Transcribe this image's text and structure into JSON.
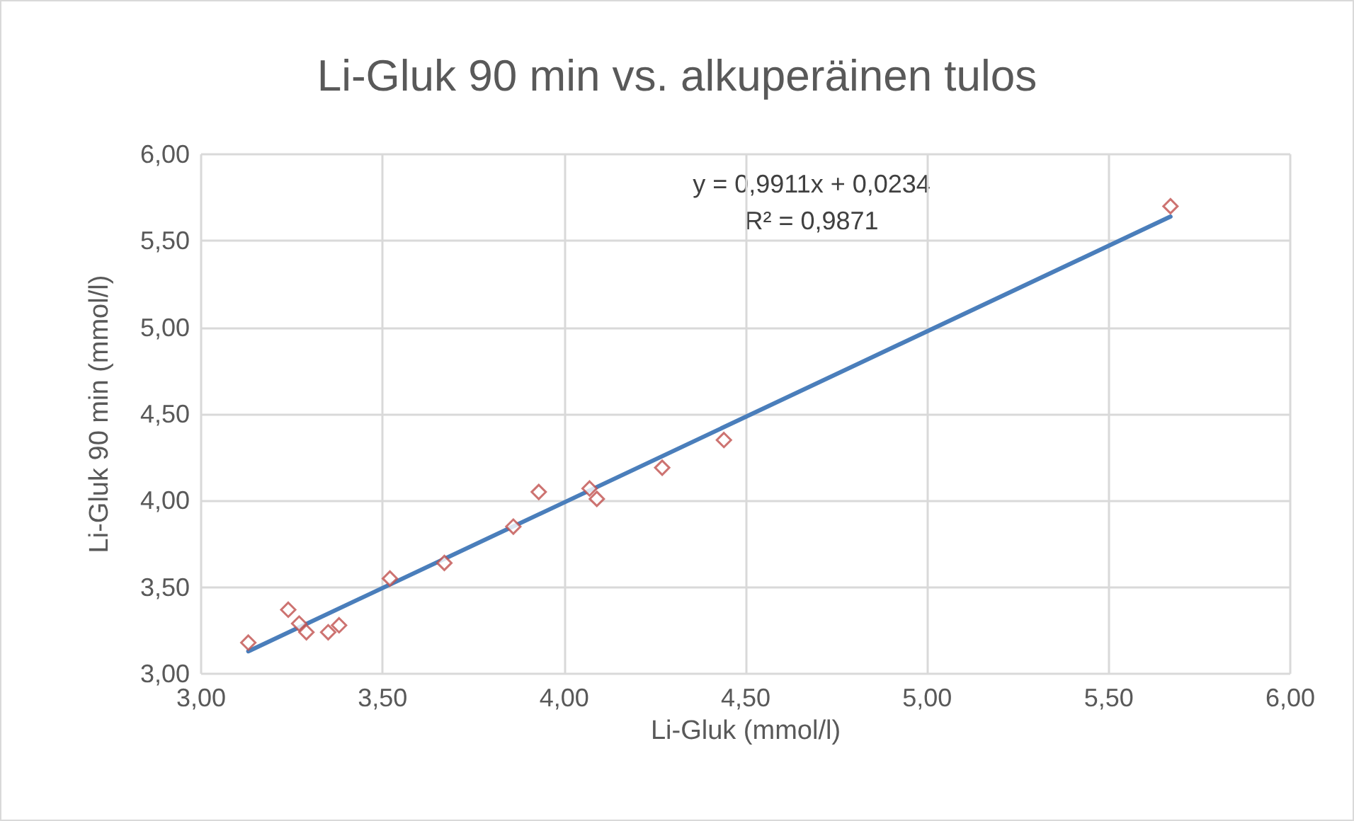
{
  "chart_data": {
    "type": "scatter",
    "title": "Li-Gluk 90 min vs. alkuperäinen tulos",
    "xlabel": "Li-Gluk (mmol/l)",
    "ylabel": "Li-Gluk 90 min (mmol/l)",
    "annotations": [
      "y = 0,9911x + 0,0234",
      "R² = 0,9871"
    ],
    "series": [
      {
        "color": "#c0504d",
        "marker": "diamond",
        "x": [
          3.13,
          3.24,
          3.27,
          3.29,
          3.35,
          3.38,
          3.52,
          3.67,
          3.86,
          3.93,
          4.07,
          4.09,
          4.27,
          4.44,
          5.67
        ],
        "values": [
          3.18,
          3.37,
          3.29,
          3.24,
          3.24,
          3.28,
          3.55,
          3.64,
          3.85,
          4.05,
          4.07,
          4.01,
          4.19,
          4.35,
          5.7
        ]
      },
      {
        "type": "line",
        "color": "#4a7ebb",
        "marker": "none",
        "line_style": "solid",
        "x": [
          3.13,
          5.67
        ],
        "values": [
          3.13,
          5.64
        ]
      }
    ],
    "xlim": [
      3,
      6
    ],
    "xticks": [
      {
        "value": 3,
        "label": "3,00"
      },
      {
        "value": 3.5,
        "label": "3,50"
      },
      {
        "value": 4,
        "label": "4,00"
      },
      {
        "value": 4.5,
        "label": "4,50"
      },
      {
        "value": 5,
        "label": "5,00"
      },
      {
        "value": 5.5,
        "label": "5,50"
      },
      {
        "value": 6,
        "label": "6,00"
      }
    ],
    "ylim": [
      3,
      6
    ],
    "yticks": [
      {
        "value": 3,
        "label": "3,00"
      },
      {
        "value": 3.5,
        "label": "3,50"
      },
      {
        "value": 4,
        "label": "4,00"
      },
      {
        "value": 4.5,
        "label": "4,50"
      },
      {
        "value": 5,
        "label": "5,00"
      },
      {
        "value": 5.5,
        "label": "5,50"
      },
      {
        "value": 6,
        "label": "6,00"
      }
    ],
    "grid": true
  }
}
